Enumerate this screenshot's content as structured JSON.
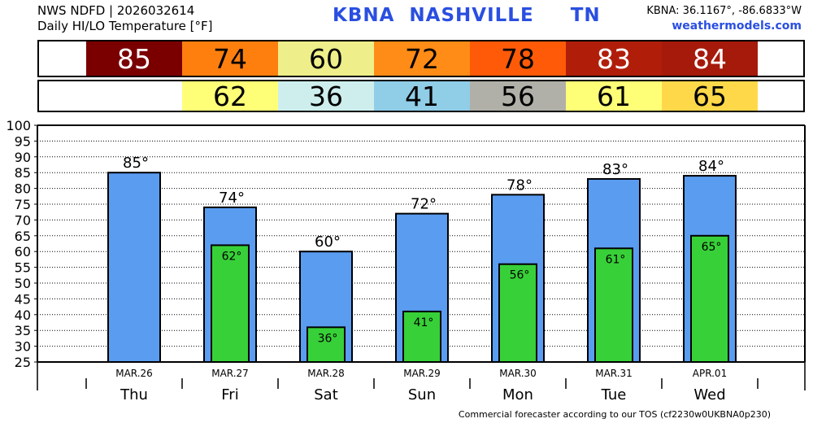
{
  "header": {
    "line1": "NWS NDFD | 2026032614",
    "line2": "Daily HI/LO Temperature [°F]",
    "station": "KBNA",
    "city": "NASHVILLE",
    "state": "TN",
    "coords": "KBNA: 36.1167°, -86.6833°W",
    "site": "weathermodels.com"
  },
  "hi_strip": [
    {
      "value": "85",
      "bg": "#7a0000",
      "fg": "#ffffff"
    },
    {
      "value": "74",
      "bg": "#ff7f0e",
      "fg": "#000000"
    },
    {
      "value": "60",
      "bg": "#eeee8a",
      "fg": "#000000"
    },
    {
      "value": "72",
      "bg": "#ff8c16",
      "fg": "#000000"
    },
    {
      "value": "78",
      "bg": "#ff5a08",
      "fg": "#000000"
    },
    {
      "value": "83",
      "bg": "#b01e0a",
      "fg": "#ffffff"
    },
    {
      "value": "84",
      "bg": "#a51a0a",
      "fg": "#ffffff"
    }
  ],
  "lo_strip": [
    {
      "value": "62",
      "bg": "#ffff77",
      "fg": "#000000"
    },
    {
      "value": "36",
      "bg": "#cdeeed",
      "fg": "#000000"
    },
    {
      "value": "41",
      "bg": "#90cde6",
      "fg": "#000000"
    },
    {
      "value": "56",
      "bg": "#b0b0a8",
      "fg": "#000000"
    },
    {
      "value": "61",
      "bg": "#ffff77",
      "fg": "#000000"
    },
    {
      "value": "65",
      "bg": "#ffd84a",
      "fg": "#000000"
    }
  ],
  "chart_data": {
    "type": "bar",
    "categories": [
      "MAR.26",
      "MAR.27",
      "MAR.28",
      "MAR.29",
      "MAR.30",
      "MAR.31",
      "APR.01"
    ],
    "days": [
      "Thu",
      "Fri",
      "Sat",
      "Sun",
      "Mon",
      "Tue",
      "Wed"
    ],
    "series": [
      {
        "values": [
          85,
          74,
          60,
          72,
          78,
          83,
          84
        ],
        "color": "#5a9cf0"
      },
      {
        "values": [
          null,
          62,
          36,
          41,
          56,
          61,
          65
        ],
        "color": "#38d038"
      }
    ],
    "hi_labels": [
      "85°",
      "74°",
      "60°",
      "72°",
      "78°",
      "83°",
      "84°"
    ],
    "lo_labels": [
      "",
      "62°",
      "36°",
      "41°",
      "56°",
      "61°",
      "65°"
    ],
    "yticks": [
      "25",
      "30",
      "35",
      "40",
      "45",
      "50",
      "55",
      "60",
      "65",
      "70",
      "75",
      "80",
      "85",
      "90",
      "95",
      "100"
    ],
    "ylim": [
      25,
      100
    ],
    "grid": true
  },
  "footer": "Commercial forecaster according to our TOS (cf2230w0UKBNA0p230)"
}
